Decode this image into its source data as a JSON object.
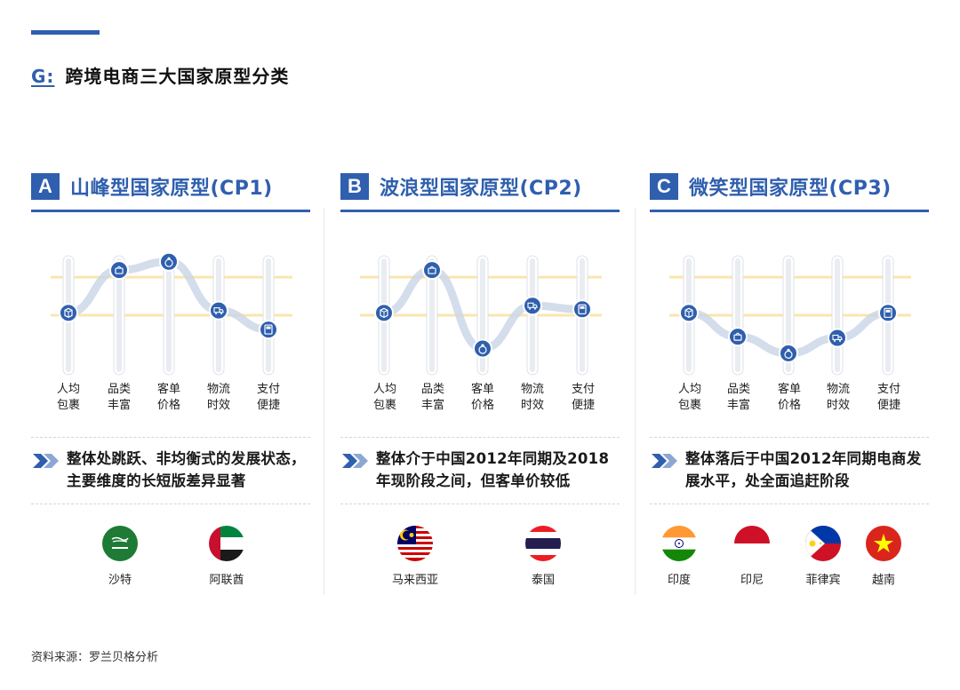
{
  "header": {
    "prefix": "G:",
    "title": "跨境电商三大国家原型分类"
  },
  "dimension_labels": [
    {
      "l1": "人均",
      "l2": "包裹"
    },
    {
      "l1": "品类",
      "l2": "丰富"
    },
    {
      "l1": "客单",
      "l2": "价格"
    },
    {
      "l1": "物流",
      "l2": "时效"
    },
    {
      "l1": "支付",
      "l2": "便捷"
    }
  ],
  "dimension_icons": [
    "package-icon",
    "bag-icon",
    "money-bag-icon",
    "truck-icon",
    "payment-terminal-icon"
  ],
  "colors": {
    "accent": "#2f5fae",
    "guide_band": "#f6d77a",
    "slider_track": "#e9ecf1",
    "connector": "#c9d4e6"
  },
  "panels": [
    {
      "letter": "A",
      "title": "山峰型国家原型(CP1)",
      "description": "整体处跳跃、非均衡式的发展状态，主要维度的长短版差异显著",
      "levels": [
        0.52,
        0.88,
        0.95,
        0.54,
        0.38
      ],
      "countries": [
        {
          "name": "沙特",
          "flag": "saudi-arabia-flag"
        },
        {
          "name": "阿联酋",
          "flag": "uae-flag"
        }
      ]
    },
    {
      "letter": "B",
      "title": "波浪型国家原型(CP2)",
      "description": "整体介于中国2012年同期及2018年现阶段之间，但客单价较低",
      "levels": [
        0.52,
        0.88,
        0.22,
        0.58,
        0.55
      ],
      "countries": [
        {
          "name": "马来西亚",
          "flag": "malaysia-flag"
        },
        {
          "name": "泰国",
          "flag": "thailand-flag"
        }
      ]
    },
    {
      "letter": "C",
      "title": "微笑型国家原型(CP3)",
      "description": "整体落后于中国2012年同期电商发展水平，处全面追赶阶段",
      "levels": [
        0.52,
        0.32,
        0.18,
        0.31,
        0.52
      ],
      "countries": [
        {
          "name": "印度",
          "flag": "india-flag"
        },
        {
          "name": "印尼",
          "flag": "indonesia-flag"
        },
        {
          "name": "菲律宾",
          "flag": "philippines-flag"
        },
        {
          "name": "越南",
          "flag": "vietnam-flag"
        }
      ]
    }
  ],
  "footnote": "资料来源：罗兰贝格分析"
}
